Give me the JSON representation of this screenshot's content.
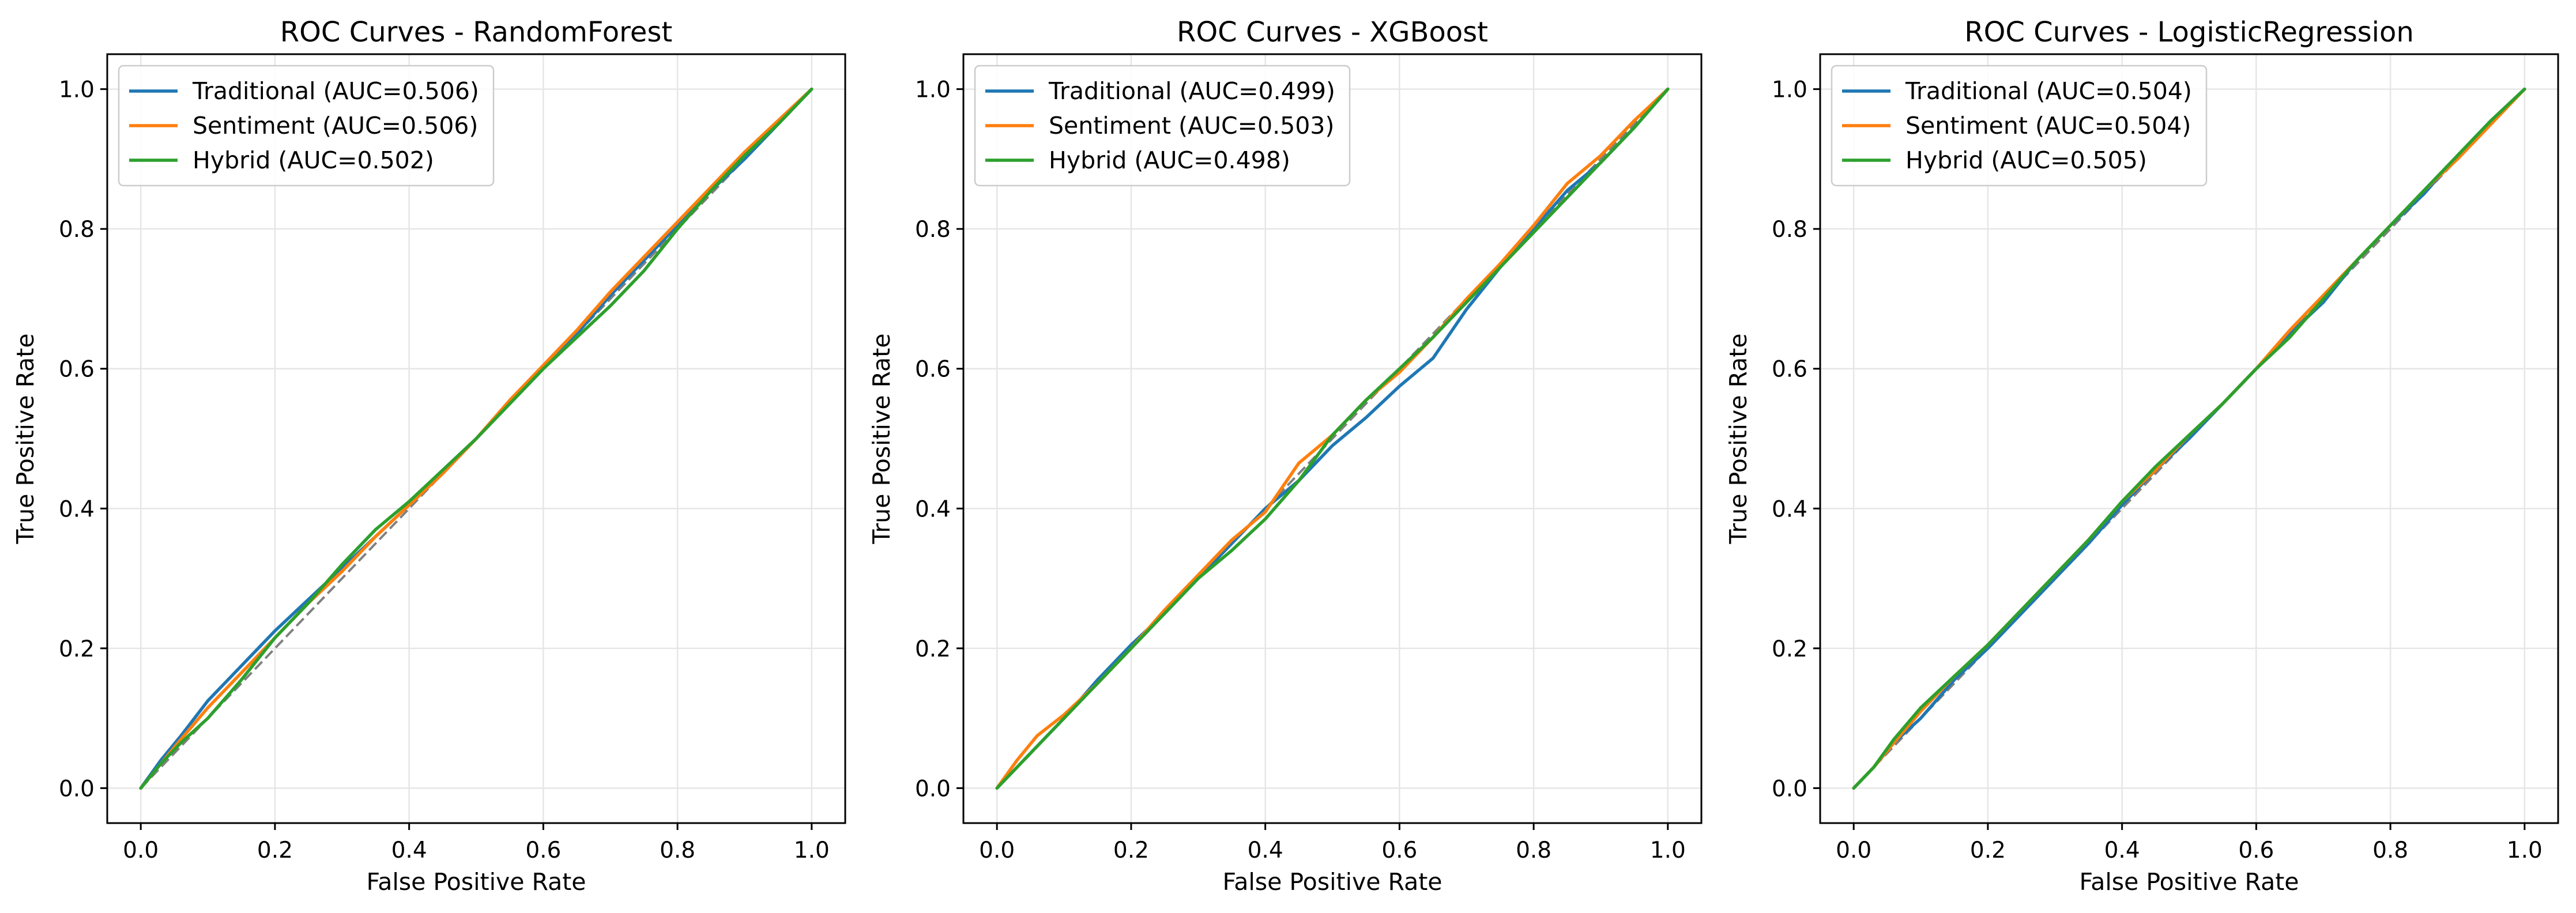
{
  "chart_data": [
    {
      "type": "line",
      "title": "ROC Curves - RandomForest",
      "xlabel": "False Positive Rate",
      "ylabel": "True Positive Rate",
      "xlim": [
        -0.05,
        1.05
      ],
      "ylim": [
        -0.05,
        1.05
      ],
      "xticks": [
        "0.0",
        "0.2",
        "0.4",
        "0.6",
        "0.8",
        "1.0"
      ],
      "yticks": [
        "0.0",
        "0.2",
        "0.4",
        "0.6",
        "0.8",
        "1.0"
      ],
      "grid": true,
      "legend_position": "top-left",
      "diagonal": {
        "style": "dashed",
        "color": "#808080",
        "x": [
          0,
          1
        ],
        "y": [
          0,
          1
        ]
      },
      "series": [
        {
          "name": "Traditional (AUC=0.506)",
          "color": "#1f77b4",
          "x": [
            0,
            0.03,
            0.06,
            0.1,
            0.15,
            0.2,
            0.25,
            0.3,
            0.35,
            0.4,
            0.45,
            0.5,
            0.55,
            0.6,
            0.65,
            0.7,
            0.75,
            0.8,
            0.85,
            0.9,
            0.95,
            1
          ],
          "y": [
            0,
            0.04,
            0.075,
            0.125,
            0.175,
            0.225,
            0.27,
            0.315,
            0.36,
            0.405,
            0.45,
            0.5,
            0.55,
            0.6,
            0.65,
            0.705,
            0.755,
            0.805,
            0.855,
            0.9,
            0.95,
            1
          ]
        },
        {
          "name": "Sentiment (AUC=0.506)",
          "color": "#ff7f0e",
          "x": [
            0,
            0.03,
            0.06,
            0.1,
            0.15,
            0.2,
            0.25,
            0.3,
            0.35,
            0.4,
            0.45,
            0.5,
            0.55,
            0.6,
            0.65,
            0.7,
            0.75,
            0.8,
            0.85,
            0.9,
            0.95,
            1
          ],
          "y": [
            0,
            0.035,
            0.07,
            0.115,
            0.165,
            0.215,
            0.265,
            0.31,
            0.36,
            0.405,
            0.45,
            0.5,
            0.555,
            0.605,
            0.655,
            0.71,
            0.76,
            0.81,
            0.86,
            0.91,
            0.955,
            1
          ]
        },
        {
          "name": "Hybrid (AUC=0.502)",
          "color": "#2ca02c",
          "x": [
            0,
            0.03,
            0.06,
            0.1,
            0.15,
            0.2,
            0.25,
            0.3,
            0.35,
            0.4,
            0.45,
            0.5,
            0.55,
            0.6,
            0.65,
            0.7,
            0.75,
            0.8,
            0.85,
            0.9,
            0.95,
            1
          ],
          "y": [
            0,
            0.035,
            0.065,
            0.1,
            0.155,
            0.215,
            0.265,
            0.32,
            0.37,
            0.41,
            0.455,
            0.5,
            0.55,
            0.6,
            0.645,
            0.69,
            0.74,
            0.8,
            0.855,
            0.905,
            0.95,
            1
          ]
        }
      ]
    },
    {
      "type": "line",
      "title": "ROC Curves - XGBoost",
      "xlabel": "False Positive Rate",
      "ylabel": "True Positive Rate",
      "xlim": [
        -0.05,
        1.05
      ],
      "ylim": [
        -0.05,
        1.05
      ],
      "xticks": [
        "0.0",
        "0.2",
        "0.4",
        "0.6",
        "0.8",
        "1.0"
      ],
      "yticks": [
        "0.0",
        "0.2",
        "0.4",
        "0.6",
        "0.8",
        "1.0"
      ],
      "grid": true,
      "legend_position": "top-left",
      "diagonal": {
        "style": "dashed",
        "color": "#808080",
        "x": [
          0,
          1
        ],
        "y": [
          0,
          1
        ]
      },
      "series": [
        {
          "name": "Traditional (AUC=0.499)",
          "color": "#1f77b4",
          "x": [
            0,
            0.03,
            0.06,
            0.1,
            0.15,
            0.2,
            0.25,
            0.3,
            0.35,
            0.4,
            0.45,
            0.5,
            0.55,
            0.6,
            0.65,
            0.7,
            0.75,
            0.8,
            0.85,
            0.9,
            0.95,
            1
          ],
          "y": [
            0,
            0.03,
            0.06,
            0.1,
            0.155,
            0.205,
            0.25,
            0.3,
            0.35,
            0.4,
            0.44,
            0.49,
            0.53,
            0.575,
            0.615,
            0.685,
            0.745,
            0.8,
            0.855,
            0.895,
            0.945,
            1
          ]
        },
        {
          "name": "Sentiment (AUC=0.503)",
          "color": "#ff7f0e",
          "x": [
            0,
            0.03,
            0.06,
            0.1,
            0.15,
            0.2,
            0.25,
            0.3,
            0.35,
            0.4,
            0.45,
            0.5,
            0.55,
            0.6,
            0.65,
            0.7,
            0.75,
            0.8,
            0.85,
            0.9,
            0.95,
            1
          ],
          "y": [
            0,
            0.04,
            0.075,
            0.105,
            0.15,
            0.2,
            0.255,
            0.305,
            0.355,
            0.395,
            0.465,
            0.505,
            0.555,
            0.595,
            0.645,
            0.7,
            0.75,
            0.805,
            0.865,
            0.905,
            0.955,
            1
          ]
        },
        {
          "name": "Hybrid (AUC=0.498)",
          "color": "#2ca02c",
          "x": [
            0,
            0.03,
            0.06,
            0.1,
            0.15,
            0.2,
            0.25,
            0.3,
            0.35,
            0.4,
            0.45,
            0.5,
            0.55,
            0.6,
            0.65,
            0.7,
            0.75,
            0.8,
            0.85,
            0.9,
            0.95,
            1
          ],
          "y": [
            0,
            0.03,
            0.06,
            0.1,
            0.15,
            0.2,
            0.25,
            0.3,
            0.34,
            0.385,
            0.44,
            0.505,
            0.555,
            0.6,
            0.645,
            0.695,
            0.745,
            0.795,
            0.845,
            0.895,
            0.945,
            1
          ]
        }
      ]
    },
    {
      "type": "line",
      "title": "ROC Curves - LogisticRegression",
      "xlabel": "False Positive Rate",
      "ylabel": "True Positive Rate",
      "xlim": [
        -0.05,
        1.05
      ],
      "ylim": [
        -0.05,
        1.05
      ],
      "xticks": [
        "0.0",
        "0.2",
        "0.4",
        "0.6",
        "0.8",
        "1.0"
      ],
      "yticks": [
        "0.0",
        "0.2",
        "0.4",
        "0.6",
        "0.8",
        "1.0"
      ],
      "grid": true,
      "legend_position": "top-left",
      "diagonal": {
        "style": "dashed",
        "color": "#808080",
        "x": [
          0,
          1
        ],
        "y": [
          0,
          1
        ]
      },
      "series": [
        {
          "name": "Traditional (AUC=0.504)",
          "color": "#1f77b4",
          "x": [
            0,
            0.03,
            0.06,
            0.1,
            0.15,
            0.2,
            0.25,
            0.3,
            0.35,
            0.4,
            0.45,
            0.5,
            0.55,
            0.6,
            0.65,
            0.7,
            0.75,
            0.8,
            0.85,
            0.9,
            0.95,
            1
          ],
          "y": [
            0,
            0.03,
            0.065,
            0.1,
            0.155,
            0.2,
            0.25,
            0.3,
            0.35,
            0.405,
            0.455,
            0.5,
            0.55,
            0.6,
            0.65,
            0.695,
            0.755,
            0.805,
            0.85,
            0.905,
            0.955,
            1
          ]
        },
        {
          "name": "Sentiment (AUC=0.504)",
          "color": "#ff7f0e",
          "x": [
            0,
            0.03,
            0.06,
            0.1,
            0.15,
            0.2,
            0.25,
            0.3,
            0.35,
            0.4,
            0.45,
            0.5,
            0.55,
            0.6,
            0.65,
            0.7,
            0.75,
            0.8,
            0.85,
            0.9,
            0.95,
            1
          ],
          "y": [
            0,
            0.03,
            0.065,
            0.11,
            0.16,
            0.205,
            0.255,
            0.305,
            0.355,
            0.41,
            0.455,
            0.505,
            0.55,
            0.6,
            0.655,
            0.705,
            0.755,
            0.805,
            0.855,
            0.9,
            0.95,
            1
          ]
        },
        {
          "name": "Hybrid (AUC=0.505)",
          "color": "#2ca02c",
          "x": [
            0,
            0.03,
            0.06,
            0.1,
            0.15,
            0.2,
            0.25,
            0.3,
            0.35,
            0.4,
            0.45,
            0.5,
            0.55,
            0.6,
            0.65,
            0.7,
            0.75,
            0.8,
            0.85,
            0.9,
            0.95,
            1
          ],
          "y": [
            0,
            0.03,
            0.07,
            0.115,
            0.16,
            0.205,
            0.255,
            0.305,
            0.355,
            0.41,
            0.46,
            0.505,
            0.55,
            0.6,
            0.645,
            0.7,
            0.755,
            0.805,
            0.855,
            0.905,
            0.955,
            1
          ]
        }
      ]
    }
  ]
}
